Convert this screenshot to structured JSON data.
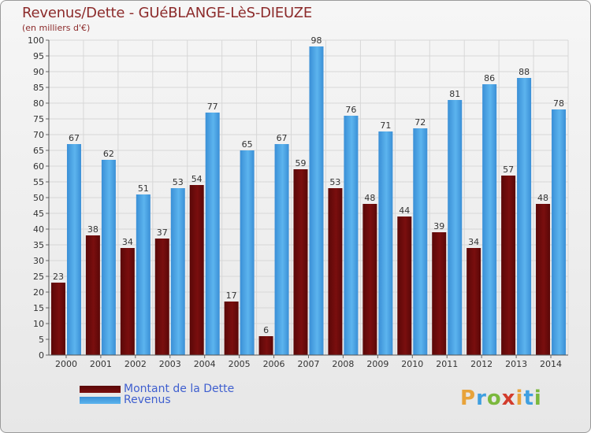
{
  "chart_data": {
    "type": "bar",
    "title": "Revenus/Dette - GUéBLANGE-LèS-DIEUZE",
    "subtitle": "(en milliers d'€)",
    "categories": [
      "2000",
      "2001",
      "2002",
      "2003",
      "2004",
      "2005",
      "2006",
      "2007",
      "2008",
      "2009",
      "2010",
      "2011",
      "2012",
      "2013",
      "2014"
    ],
    "series": [
      {
        "name": "Montant de la Dette",
        "values": [
          23,
          38,
          34,
          37,
          54,
          17,
          6,
          59,
          53,
          48,
          44,
          39,
          34,
          57,
          48
        ],
        "color": "#7a0e0e"
      },
      {
        "name": "Revenus",
        "values": [
          67,
          62,
          51,
          53,
          77,
          65,
          67,
          98,
          76,
          71,
          72,
          81,
          86,
          88,
          78
        ],
        "color": "#3f9fe0"
      }
    ],
    "ylim": [
      0,
      100
    ],
    "yticks": [
      0,
      5,
      10,
      15,
      20,
      25,
      30,
      35,
      40,
      45,
      50,
      55,
      60,
      65,
      70,
      75,
      80,
      85,
      90,
      95,
      100
    ],
    "grid": true,
    "legend": "bottom-left"
  },
  "logo": {
    "letters": [
      "P",
      "r",
      "o",
      "x",
      "i",
      "t",
      "i"
    ],
    "colors": [
      "#e8a33a",
      "#3f9fe0",
      "#7bb83d",
      "#d23c2c",
      "#e8a33a",
      "#3f9fe0",
      "#7bb83d"
    ]
  }
}
